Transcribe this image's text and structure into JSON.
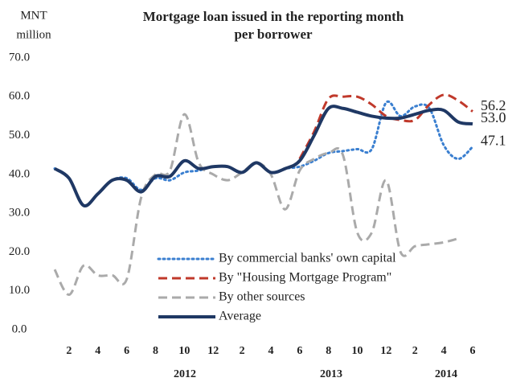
{
  "chart_data": {
    "type": "line",
    "title": [
      "Mortgage loan issued in the reporting month",
      "per borrower"
    ],
    "y_label": [
      "MNT",
      "million"
    ],
    "categories": [
      null,
      "2",
      null,
      "4",
      null,
      "6",
      null,
      "8",
      null,
      "10",
      null,
      "12",
      null,
      "2",
      null,
      "4",
      null,
      "6",
      null,
      "8",
      null,
      "10",
      null,
      "12",
      null,
      "2",
      null,
      "4",
      null,
      "6"
    ],
    "years": [
      "2012",
      "2013",
      "2014"
    ],
    "ylim": [
      0,
      70
    ],
    "yticks": [
      {
        "value": 0,
        "label": "0.0"
      },
      {
        "value": 10,
        "label": "10.0"
      },
      {
        "value": 20,
        "label": "20.0"
      },
      {
        "value": 30,
        "label": "30.0"
      },
      {
        "value": 40,
        "label": "40.0"
      },
      {
        "value": 50,
        "label": "50.0"
      },
      {
        "value": 60,
        "label": "60.0"
      },
      {
        "value": 70,
        "label": "70.0"
      }
    ],
    "grid": false,
    "legend": "bottom",
    "series": [
      {
        "name": "By commercial banks' own capital",
        "color": "#3a7fd0",
        "dash": "dotted",
        "values": [
          41.5,
          39,
          32,
          35,
          38.5,
          39,
          36,
          39,
          38.5,
          40.5,
          41,
          42,
          42,
          40.5,
          43,
          40.5,
          41.5,
          42,
          43.5,
          45.5,
          46,
          46.5,
          46.5,
          58.5,
          55,
          57.5,
          57,
          47.5,
          44,
          47.1
        ],
        "value_labels": [
          null,
          null,
          null,
          null,
          null,
          null,
          null,
          null,
          null,
          null,
          null,
          null,
          null,
          null,
          null,
          null,
          null,
          null,
          null,
          null,
          null,
          null,
          null,
          null,
          null,
          null,
          null,
          null,
          null,
          "47.1"
        ]
      },
      {
        "name": "By \"Housing Mortgage Program\"",
        "color": "#c0392b",
        "dash": "dashed",
        "values": [
          null,
          null,
          null,
          null,
          null,
          null,
          null,
          null,
          null,
          null,
          null,
          null,
          null,
          null,
          null,
          null,
          null,
          44,
          51,
          59.5,
          60,
          60,
          58,
          55,
          54,
          54,
          58,
          60.5,
          59,
          56.2
        ],
        "value_labels": [
          null,
          null,
          null,
          null,
          null,
          null,
          null,
          null,
          null,
          null,
          null,
          null,
          null,
          null,
          null,
          null,
          null,
          null,
          null,
          null,
          null,
          null,
          null,
          null,
          null,
          null,
          null,
          null,
          null,
          "56.2"
        ]
      },
      {
        "name": "By other sources",
        "color": "#aaaaaa",
        "dash": "dashed",
        "values": [
          15.5,
          9,
          16.5,
          14,
          14,
          13,
          34,
          40,
          41,
          55.5,
          43,
          40,
          38.5,
          40.5,
          43,
          40,
          31,
          41,
          44,
          45.5,
          45,
          25,
          25,
          38.5,
          20,
          21.5,
          22,
          22.5,
          23.5,
          null
        ]
      },
      {
        "name": "Average",
        "color": "#1f3864",
        "dash": "solid",
        "values": [
          41.5,
          39,
          32,
          35,
          38.5,
          38.5,
          35.5,
          39.5,
          39.5,
          43.5,
          41.5,
          42,
          42,
          40.5,
          43,
          40.5,
          41.5,
          43.5,
          50,
          57,
          57,
          56,
          55,
          54.5,
          54.5,
          55.5,
          56.5,
          56.5,
          53.5,
          53.0
        ],
        "value_labels": [
          null,
          null,
          null,
          null,
          null,
          null,
          null,
          null,
          null,
          null,
          null,
          null,
          null,
          null,
          null,
          null,
          null,
          null,
          null,
          null,
          null,
          null,
          null,
          null,
          null,
          null,
          null,
          null,
          null,
          "53.0"
        ]
      }
    ]
  }
}
